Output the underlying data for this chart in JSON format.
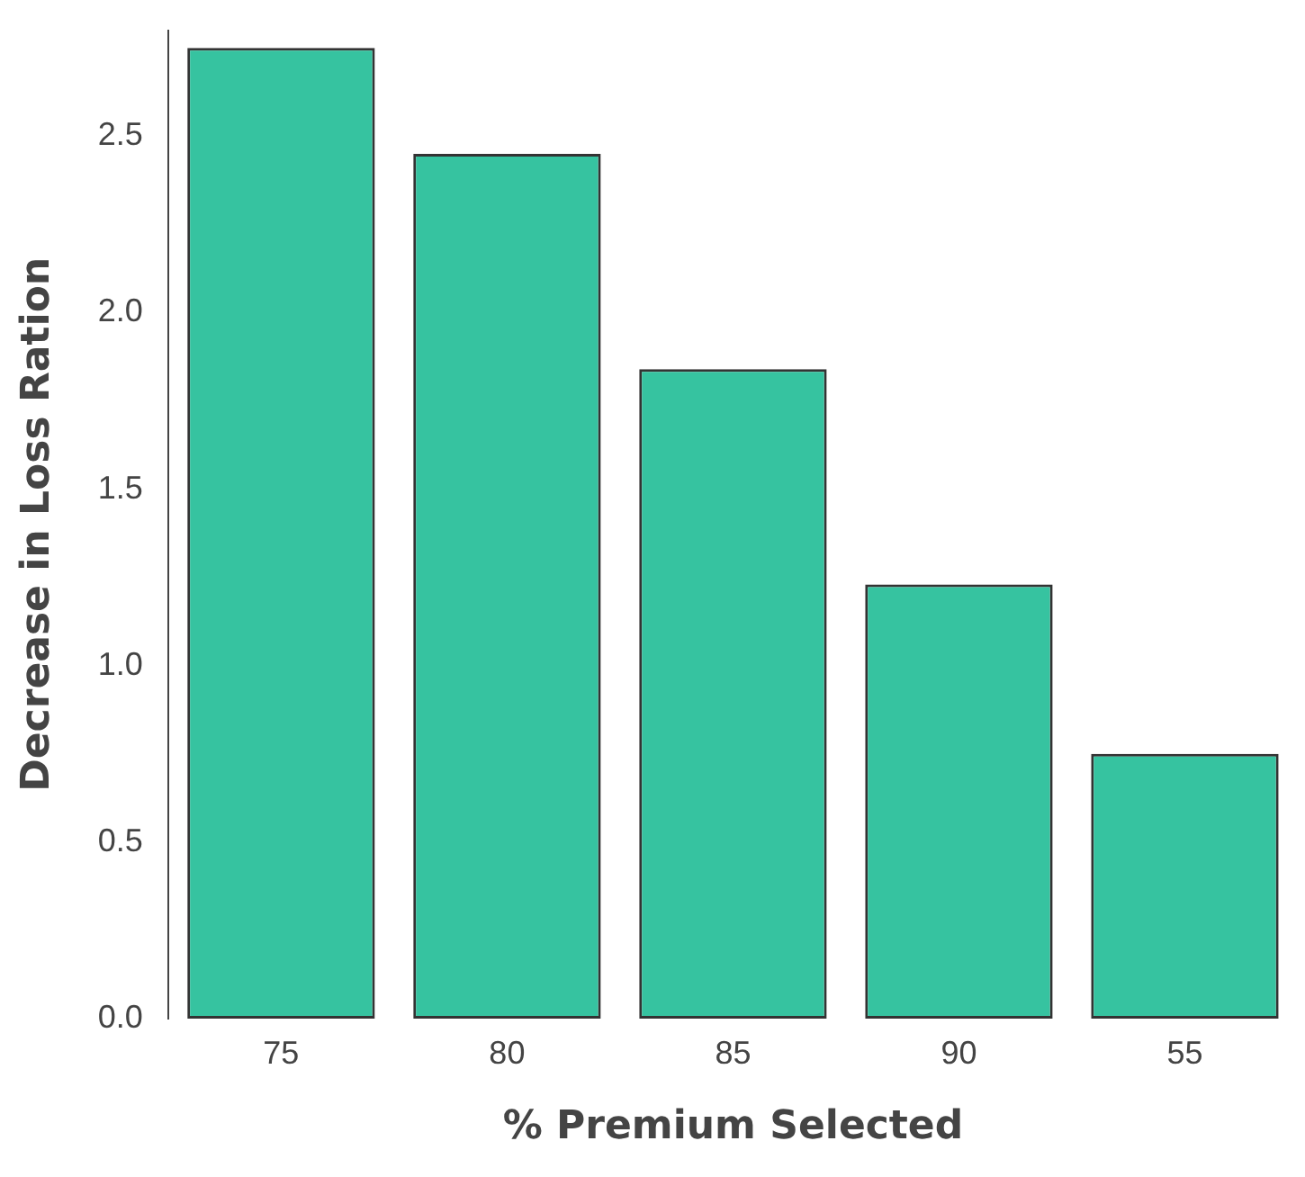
{
  "chart_data": {
    "type": "bar",
    "xlabel": "% Premium Selected",
    "ylabel": "Decrease in Loss Ration",
    "categories": [
      "75",
      "80",
      "85",
      "90",
      "55"
    ],
    "values": [
      2.75,
      2.45,
      1.84,
      1.23,
      0.75
    ],
    "color": "#36c3a0",
    "ylim": [
      0,
      2.8
    ],
    "yticks": [
      {
        "value": 0,
        "label": "0.0"
      },
      {
        "value": 0.5,
        "label": "0.5"
      },
      {
        "value": 1,
        "label": "1.0"
      },
      {
        "value": 1.5,
        "label": "1.5"
      },
      {
        "value": 2,
        "label": "2.0"
      },
      {
        "value": 2.5,
        "label": "2.5"
      }
    ],
    "grid": false,
    "legend": false
  }
}
